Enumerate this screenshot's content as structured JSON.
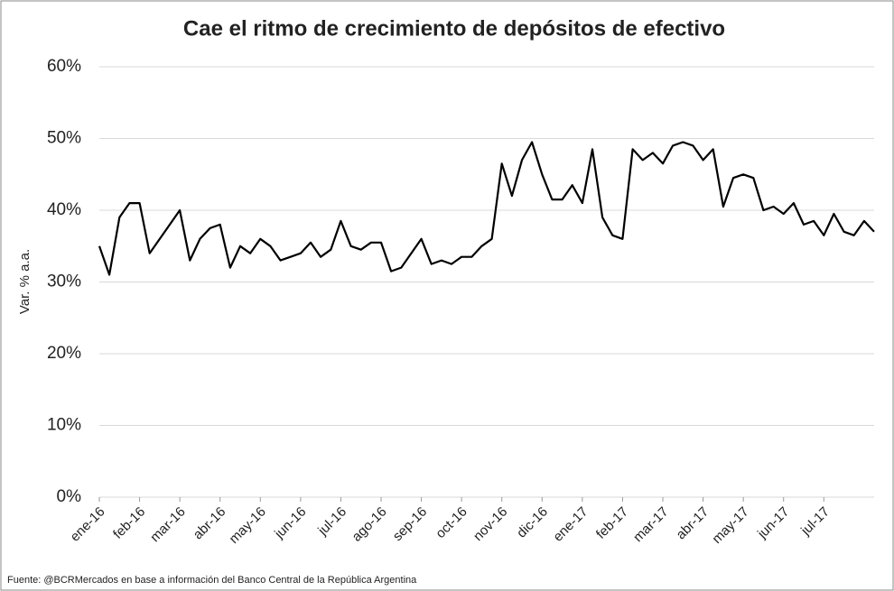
{
  "chart_data": {
    "type": "line",
    "title": "Cae el ritmo de crecimiento de depósitos de efectivo",
    "y_label": "Var. % a.a.",
    "source": "Fuente: @BCRMercados en base a información del Banco Central de la República Argentina",
    "categories": [
      "ene-16",
      null,
      null,
      null,
      "feb-16",
      null,
      null,
      null,
      "mar-16",
      null,
      null,
      null,
      "abr-16",
      null,
      null,
      null,
      "may-16",
      null,
      null,
      null,
      "jun-16",
      null,
      null,
      null,
      "jul-16",
      null,
      null,
      null,
      "ago-16",
      null,
      null,
      null,
      "sep-16",
      null,
      null,
      null,
      "oct-16",
      null,
      null,
      null,
      "nov-16",
      null,
      null,
      null,
      "dic-16",
      null,
      null,
      null,
      "ene-17",
      null,
      null,
      null,
      "feb-17",
      null,
      null,
      null,
      "mar-17",
      null,
      null,
      null,
      "abr-17",
      null,
      null,
      null,
      "may-17",
      null,
      null,
      null,
      "jun-17",
      null,
      null,
      null,
      "jul-17",
      null,
      null,
      null,
      null,
      null
    ],
    "values": [
      35,
      31,
      39,
      41,
      41,
      34,
      36,
      38,
      40,
      33,
      36,
      37.5,
      38,
      32,
      35,
      34,
      36,
      35,
      33,
      33.5,
      34,
      35.5,
      33.5,
      34.5,
      38.5,
      35,
      34.5,
      35.5,
      35.5,
      31.5,
      32,
      34,
      36,
      32.5,
      33,
      32.5,
      33.5,
      33.5,
      35,
      36,
      46.5,
      42,
      47,
      49.5,
      45,
      41.5,
      41.5,
      43.5,
      41,
      48.5,
      39,
      36.5,
      36,
      48.5,
      47,
      48,
      46.5,
      49,
      49.5,
      49,
      47,
      48.5,
      40.5,
      44.5,
      45,
      44.5,
      40,
      40.5,
      39.5,
      41,
      38,
      38.5,
      36.5,
      39.5,
      37,
      36.5,
      38.5,
      37
    ],
    "color": "#000000",
    "ylim": [
      0,
      60
    ],
    "yticks": [
      {
        "value": 0,
        "label": "0%"
      },
      {
        "value": 10,
        "label": "10%"
      },
      {
        "value": 20,
        "label": "20%"
      },
      {
        "value": 30,
        "label": "30%"
      },
      {
        "value": 40,
        "label": "40%"
      },
      {
        "value": 50,
        "label": "50%"
      },
      {
        "value": 60,
        "label": "60%"
      }
    ],
    "grid": true
  }
}
